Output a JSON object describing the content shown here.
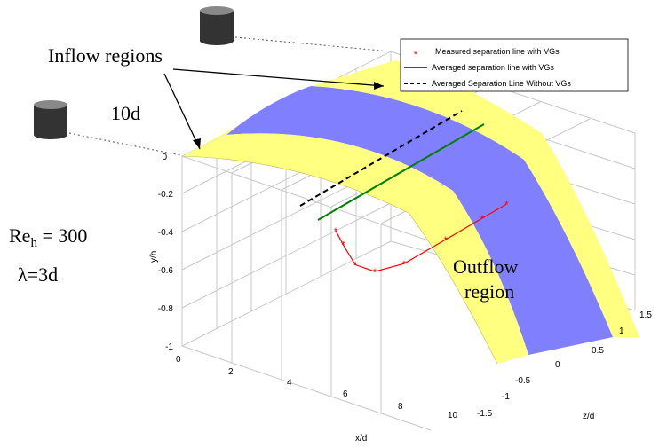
{
  "chart_data": {
    "type": "surface",
    "title": "",
    "xlabel": "x/d",
    "ylabel": "y/h",
    "zlabel": "z/d",
    "x_ticks": [
      "0",
      "2",
      "4",
      "6",
      "8",
      "10"
    ],
    "y_ticks": [
      "0",
      "-0.2",
      "-0.4",
      "-0.6",
      "-0.8",
      "-1"
    ],
    "z_ticks": [
      "1.5",
      "1",
      "0.5",
      "0",
      "-0.5",
      "-1",
      "-1.5"
    ],
    "xlim": [
      0,
      10
    ],
    "ylim": [
      -1,
      0
    ],
    "zlim": [
      -1.5,
      1.5
    ],
    "grid": true,
    "surface_bands": [
      {
        "region": "inflow",
        "color": "#ffff80"
      },
      {
        "region": "outflow",
        "color": "#8080ff"
      },
      {
        "region": "inflow",
        "color": "#ffff80"
      }
    ],
    "series": [
      {
        "name": "Measured separation line with VGs",
        "color": "#ff0000",
        "style": "star-markers-solid",
        "points": [
          [
            2.0,
            -0.4
          ],
          [
            2.3,
            -0.3
          ],
          [
            2.8,
            -0.15
          ],
          [
            3.6,
            -0.05
          ],
          [
            4.8,
            0.0
          ],
          [
            6.5,
            0.0
          ],
          [
            8.0,
            0.0
          ],
          [
            9.0,
            0.0
          ]
        ]
      },
      {
        "name": "Averaged separation line with VGs",
        "color": "#008000",
        "style": "solid"
      },
      {
        "name": "Averaged Separation Line Without VGs",
        "color": "#000000",
        "style": "dashed"
      }
    ],
    "legend_position": "top-right"
  },
  "annotations": {
    "inflow": "Inflow regions",
    "ten_d": "10d",
    "re_base": "Re",
    "re_sub": "h",
    "re_value": " = 300",
    "lambda": "λ=3d",
    "outflow_line1": "Outflow",
    "outflow_line2": "region"
  },
  "colors": {
    "inflow": "#ffff80",
    "outflow": "#8080ff",
    "measured": "#ff0000",
    "averaged_with": "#008000",
    "averaged_without": "#000000",
    "grid": "#c8c8c8"
  }
}
